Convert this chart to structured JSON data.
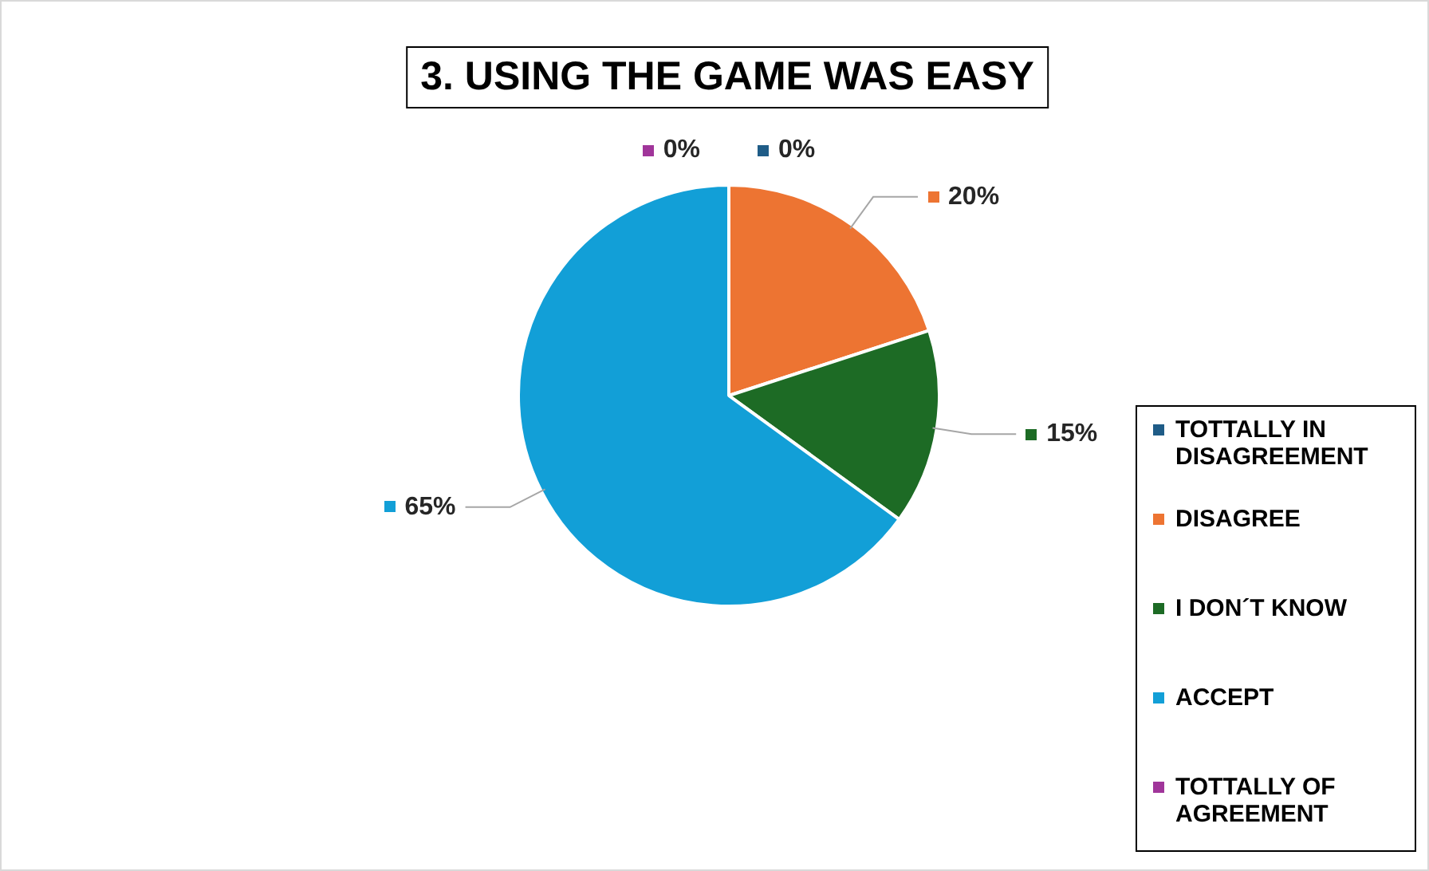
{
  "chart_data": {
    "type": "pie",
    "title": "3. USING THE GAME WAS EASY",
    "categories": [
      "TOTTALLY IN DISAGREEMENT",
      "DISAGREE",
      "I DON´T KNOW",
      "ACCEPT",
      "TOTTALLY OF AGREEMENT"
    ],
    "values": [
      0,
      20,
      15,
      65,
      0
    ],
    "value_labels": [
      "0%",
      "20%",
      "15%",
      "65%",
      "0%"
    ],
    "colors": [
      "#1f5c87",
      "#ed7432",
      "#1d6b25",
      "#129fd7",
      "#a0359a"
    ],
    "legend": "right"
  }
}
